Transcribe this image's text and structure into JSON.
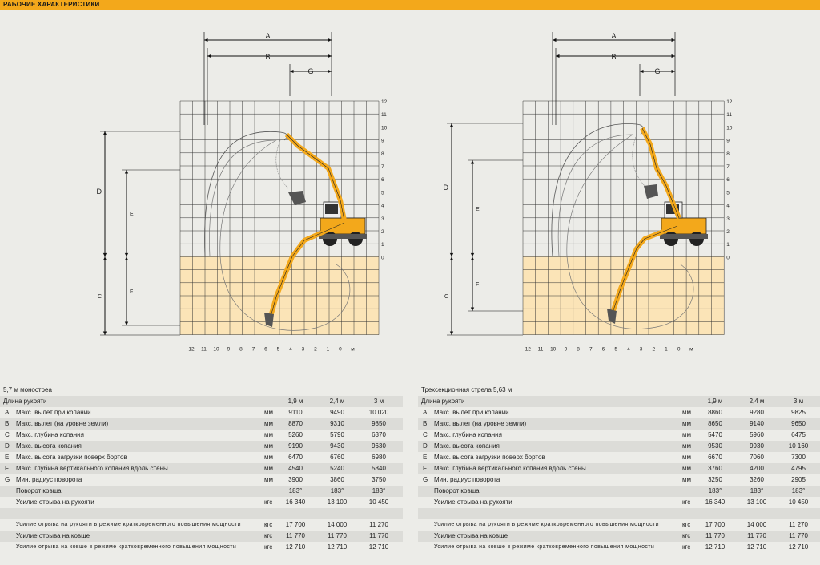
{
  "header": {
    "title": "РАБОЧИЕ ХАРАКТЕРИСТИКИ"
  },
  "diagram": {
    "dims": {
      "A": "A",
      "B": "B",
      "G": "G",
      "D": "D",
      "E": "E",
      "C": "C",
      "F": "F"
    },
    "y_ticks": [
      "12",
      "11",
      "10",
      "9",
      "8",
      "7",
      "6",
      "5",
      "4",
      "3",
      "2",
      "1",
      "0"
    ],
    "x_ticks": [
      "12",
      "11",
      "10",
      "9",
      "8",
      "7",
      "6",
      "5",
      "4",
      "3",
      "2",
      "1",
      "0"
    ],
    "x_unit": "м",
    "colors": {
      "ground": "#fbe4b7",
      "machine": "#f3a81b",
      "grid": "#333333"
    }
  },
  "tables": [
    {
      "title": "5,7 м моностреа",
      "header_label": "Длина рукояти",
      "cols": [
        "1,9 м",
        "2,4 м",
        "3 м"
      ],
      "rows": [
        {
          "key": "A",
          "label": "Макс. вылет при копании",
          "unit": "мм",
          "v": [
            "9110",
            "9490",
            "10 020"
          ]
        },
        {
          "key": "B",
          "label": "Макс. вылет (на уровне земли)",
          "unit": "мм",
          "v": [
            "8870",
            "9310",
            "9850"
          ]
        },
        {
          "key": "C",
          "label": "Макс. глубина копания",
          "unit": "мм",
          "v": [
            "5260",
            "5790",
            "6370"
          ]
        },
        {
          "key": "D",
          "label": "Макс. высота копания",
          "unit": "мм",
          "v": [
            "9190",
            "9430",
            "9630"
          ]
        },
        {
          "key": "E",
          "label": "Макс. высота загрузки поверх бортов",
          "unit": "мм",
          "v": [
            "6470",
            "6760",
            "6980"
          ]
        },
        {
          "key": "F",
          "label": "Макс. глубина вертикального копания вдоль стены",
          "unit": "мм",
          "v": [
            "4540",
            "5240",
            "5840"
          ]
        },
        {
          "key": "G",
          "label": "Мин. радиус поворота",
          "unit": "мм",
          "v": [
            "3900",
            "3860",
            "3750"
          ]
        },
        {
          "key": "",
          "label": "Поворот ковша",
          "unit": "",
          "v": [
            "183°",
            "183°",
            "183°"
          ]
        },
        {
          "key": "",
          "label": "Усилие отрыва на рукояти",
          "unit": "кгс",
          "v": [
            "16 340",
            "13 100",
            "10 450"
          ]
        },
        {
          "key": "",
          "label": "",
          "unit": "",
          "v": [
            "",
            "",
            ""
          ]
        },
        {
          "key": "",
          "label": "Усилие отрыва на рукояти в режиме кратковременного повышения мощности",
          "unit": "кгс",
          "v": [
            "17 700",
            "14 000",
            "11 270"
          ]
        },
        {
          "key": "",
          "label": "Усилие отрыва на ковше",
          "unit": "кгс",
          "v": [
            "11 770",
            "11 770",
            "11 770"
          ]
        },
        {
          "key": "",
          "label": "Усилие отрыва на ковше в режиме кратковременного повышения мощности",
          "unit": "кгс",
          "v": [
            "12 710",
            "12 710",
            "12 710"
          ]
        }
      ]
    },
    {
      "title": "Трехсекционная стрела 5,63 м",
      "header_label": "Длина рукояти",
      "cols": [
        "1,9 м",
        "2,4 м",
        "3 м"
      ],
      "rows": [
        {
          "key": "A",
          "label": "Макс. вылет при копании",
          "unit": "мм",
          "v": [
            "8860",
            "9280",
            "9825"
          ]
        },
        {
          "key": "B",
          "label": "Макс. вылет (на уровне земли)",
          "unit": "мм",
          "v": [
            "8650",
            "9140",
            "9650"
          ]
        },
        {
          "key": "C",
          "label": "Макс. глубина копания",
          "unit": "мм",
          "v": [
            "5470",
            "5960",
            "6475"
          ]
        },
        {
          "key": "D",
          "label": "Макс. высота копания",
          "unit": "мм",
          "v": [
            "9530",
            "9930",
            "10 160"
          ]
        },
        {
          "key": "E",
          "label": "Макс. высота загрузки поверх бортов",
          "unit": "мм",
          "v": [
            "6670",
            "7060",
            "7300"
          ]
        },
        {
          "key": "F",
          "label": "Макс. глубина вертикального копания вдоль стены",
          "unit": "мм",
          "v": [
            "3760",
            "4200",
            "4795"
          ]
        },
        {
          "key": "G",
          "label": "Мин. радиус поворота",
          "unit": "мм",
          "v": [
            "3250",
            "3260",
            "2905"
          ]
        },
        {
          "key": "",
          "label": "Поворот ковша",
          "unit": "",
          "v": [
            "183°",
            "183°",
            "183°"
          ]
        },
        {
          "key": "",
          "label": "Усилие отрыва на рукояти",
          "unit": "кгс",
          "v": [
            "16 340",
            "13 100",
            "10 450"
          ]
        },
        {
          "key": "",
          "label": "",
          "unit": "",
          "v": [
            "",
            "",
            ""
          ]
        },
        {
          "key": "",
          "label": "Усилие отрыва на рукояти в режиме кратковременного повышения мощности",
          "unit": "кгс",
          "v": [
            "17 700",
            "14 000",
            "11 270"
          ]
        },
        {
          "key": "",
          "label": "Усилие отрыва на ковше",
          "unit": "кгс",
          "v": [
            "11 770",
            "11 770",
            "11 770"
          ]
        },
        {
          "key": "",
          "label": "Усилие отрыва на ковше в режиме кратковременного повышения мощности",
          "unit": "кгс",
          "v": [
            "12 710",
            "12 710",
            "12 710"
          ]
        }
      ]
    }
  ]
}
